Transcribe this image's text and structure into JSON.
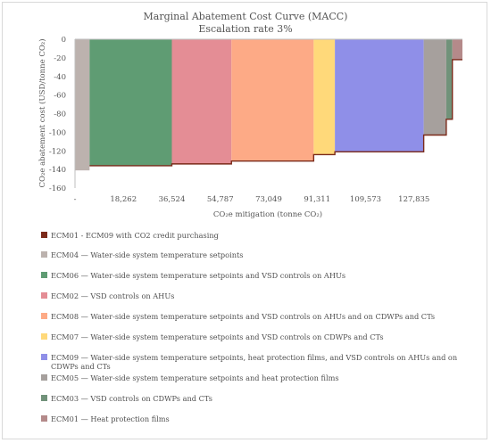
{
  "chart_data": {
    "type": "bar",
    "title": "Marginal Abatement Cost Curve (MACC)",
    "subtitle": "Escalation rate 3%",
    "xlabel": "CO₂e mitigation (tonne CO₂)",
    "ylabel": "CO₂e abatement cost (USD/tonne CO₂)",
    "ylim": [
      -160,
      0
    ],
    "yticks": [
      "0",
      "-20",
      "-40",
      "-60",
      "-80",
      "-100",
      "-120",
      "-140",
      "-160"
    ],
    "xticks": [
      "-",
      "18,262",
      "36,524",
      "54,787",
      "73,049",
      "91,311",
      "109,573",
      "127,835"
    ],
    "xtick_values": [
      0,
      18262,
      36524,
      54787,
      73049,
      91311,
      109573,
      127835
    ],
    "xlim": [
      0,
      146098
    ],
    "grid": false,
    "legend_placement": "bottom",
    "series": [
      {
        "name": "ECM01 - ECM09  with CO2 credit purchasing",
        "color": "#7b2a1a",
        "type": "line",
        "x_start": 5500,
        "x_end": 146098,
        "value": -136
      },
      {
        "name": "ECM04 — Water-side system temperature setpoints",
        "color": "#bcb2ae",
        "x_start": 0,
        "x_end": 5500,
        "value": -141
      },
      {
        "name": "ECM06 — Water-side system temperature setpoints and VSD controls on AHUs",
        "color": "#5f9c73",
        "x_start": 5500,
        "x_end": 36524,
        "value": -136
      },
      {
        "name": "ECM02 — VSD controls on AHUs",
        "color": "#e48d95",
        "x_start": 36524,
        "x_end": 59000,
        "value": -134
      },
      {
        "name": "ECM08 — Water-side system temperature setpoints and VSD controls on AHUs and on CDWPs and CTs",
        "color": "#fdaa86",
        "x_start": 59000,
        "x_end": 90000,
        "value": -131
      },
      {
        "name": "ECM07 — Water-side system temperature setpoints and VSD controls on CDWPs and CTs",
        "color": "#ffd97a",
        "x_start": 90000,
        "x_end": 98000,
        "value": -124
      },
      {
        "name": "ECM09 — Water-side system temperature setpoints, heat protection films, and VSD controls on AHUs and on CDWPs and CTs",
        "color": "#8f8fe8",
        "x_start": 98000,
        "x_end": 131500,
        "value": -121
      },
      {
        "name": "ECM05 — Water-side system temperature setpoints and heat protection films",
        "color": "#a6a09d",
        "x_start": 131500,
        "x_end": 140000,
        "value": -103
      },
      {
        "name": "ECM03 — VSD controls on CDWPs and CTs",
        "color": "#71927a",
        "x_start": 140000,
        "x_end": 142300,
        "value": -86
      },
      {
        "name": "ECM01 — Heat protection films",
        "color": "#b48a8a",
        "x_start": 142300,
        "x_end": 146098,
        "value": -22
      }
    ]
  }
}
